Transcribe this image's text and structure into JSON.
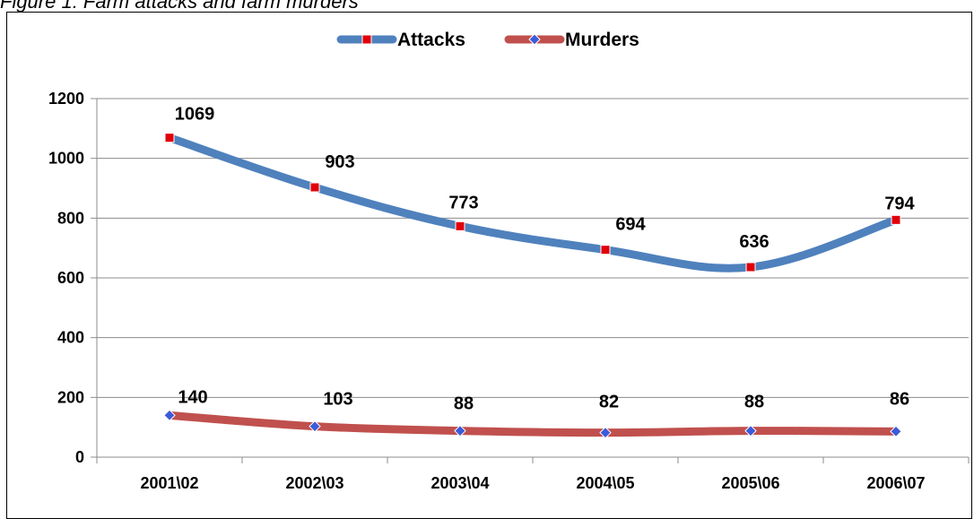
{
  "figure": {
    "caption": "Figure 1: Farm attacks and farm murders"
  },
  "chart_data": {
    "type": "line",
    "title": "",
    "xlabel": "",
    "ylabel": "",
    "categories": [
      "2001\\02",
      "2002\\03",
      "2003\\04",
      "2004\\05",
      "2005\\06",
      "2006\\07"
    ],
    "ylim": [
      0,
      1200
    ],
    "yticks": [
      0,
      200,
      400,
      600,
      800,
      1000,
      1200
    ],
    "grid": true,
    "legend_position": "top",
    "series": [
      {
        "name": "Attacks",
        "values": [
          1069,
          903,
          773,
          694,
          636,
          794
        ],
        "line_color": "#4F81BD",
        "marker_color": "#E0000B",
        "marker": "square"
      },
      {
        "name": "Murders",
        "values": [
          140,
          103,
          88,
          82,
          88,
          86
        ],
        "line_color": "#C0504D",
        "marker_color": "#3B5BD9",
        "marker": "diamond"
      }
    ]
  }
}
